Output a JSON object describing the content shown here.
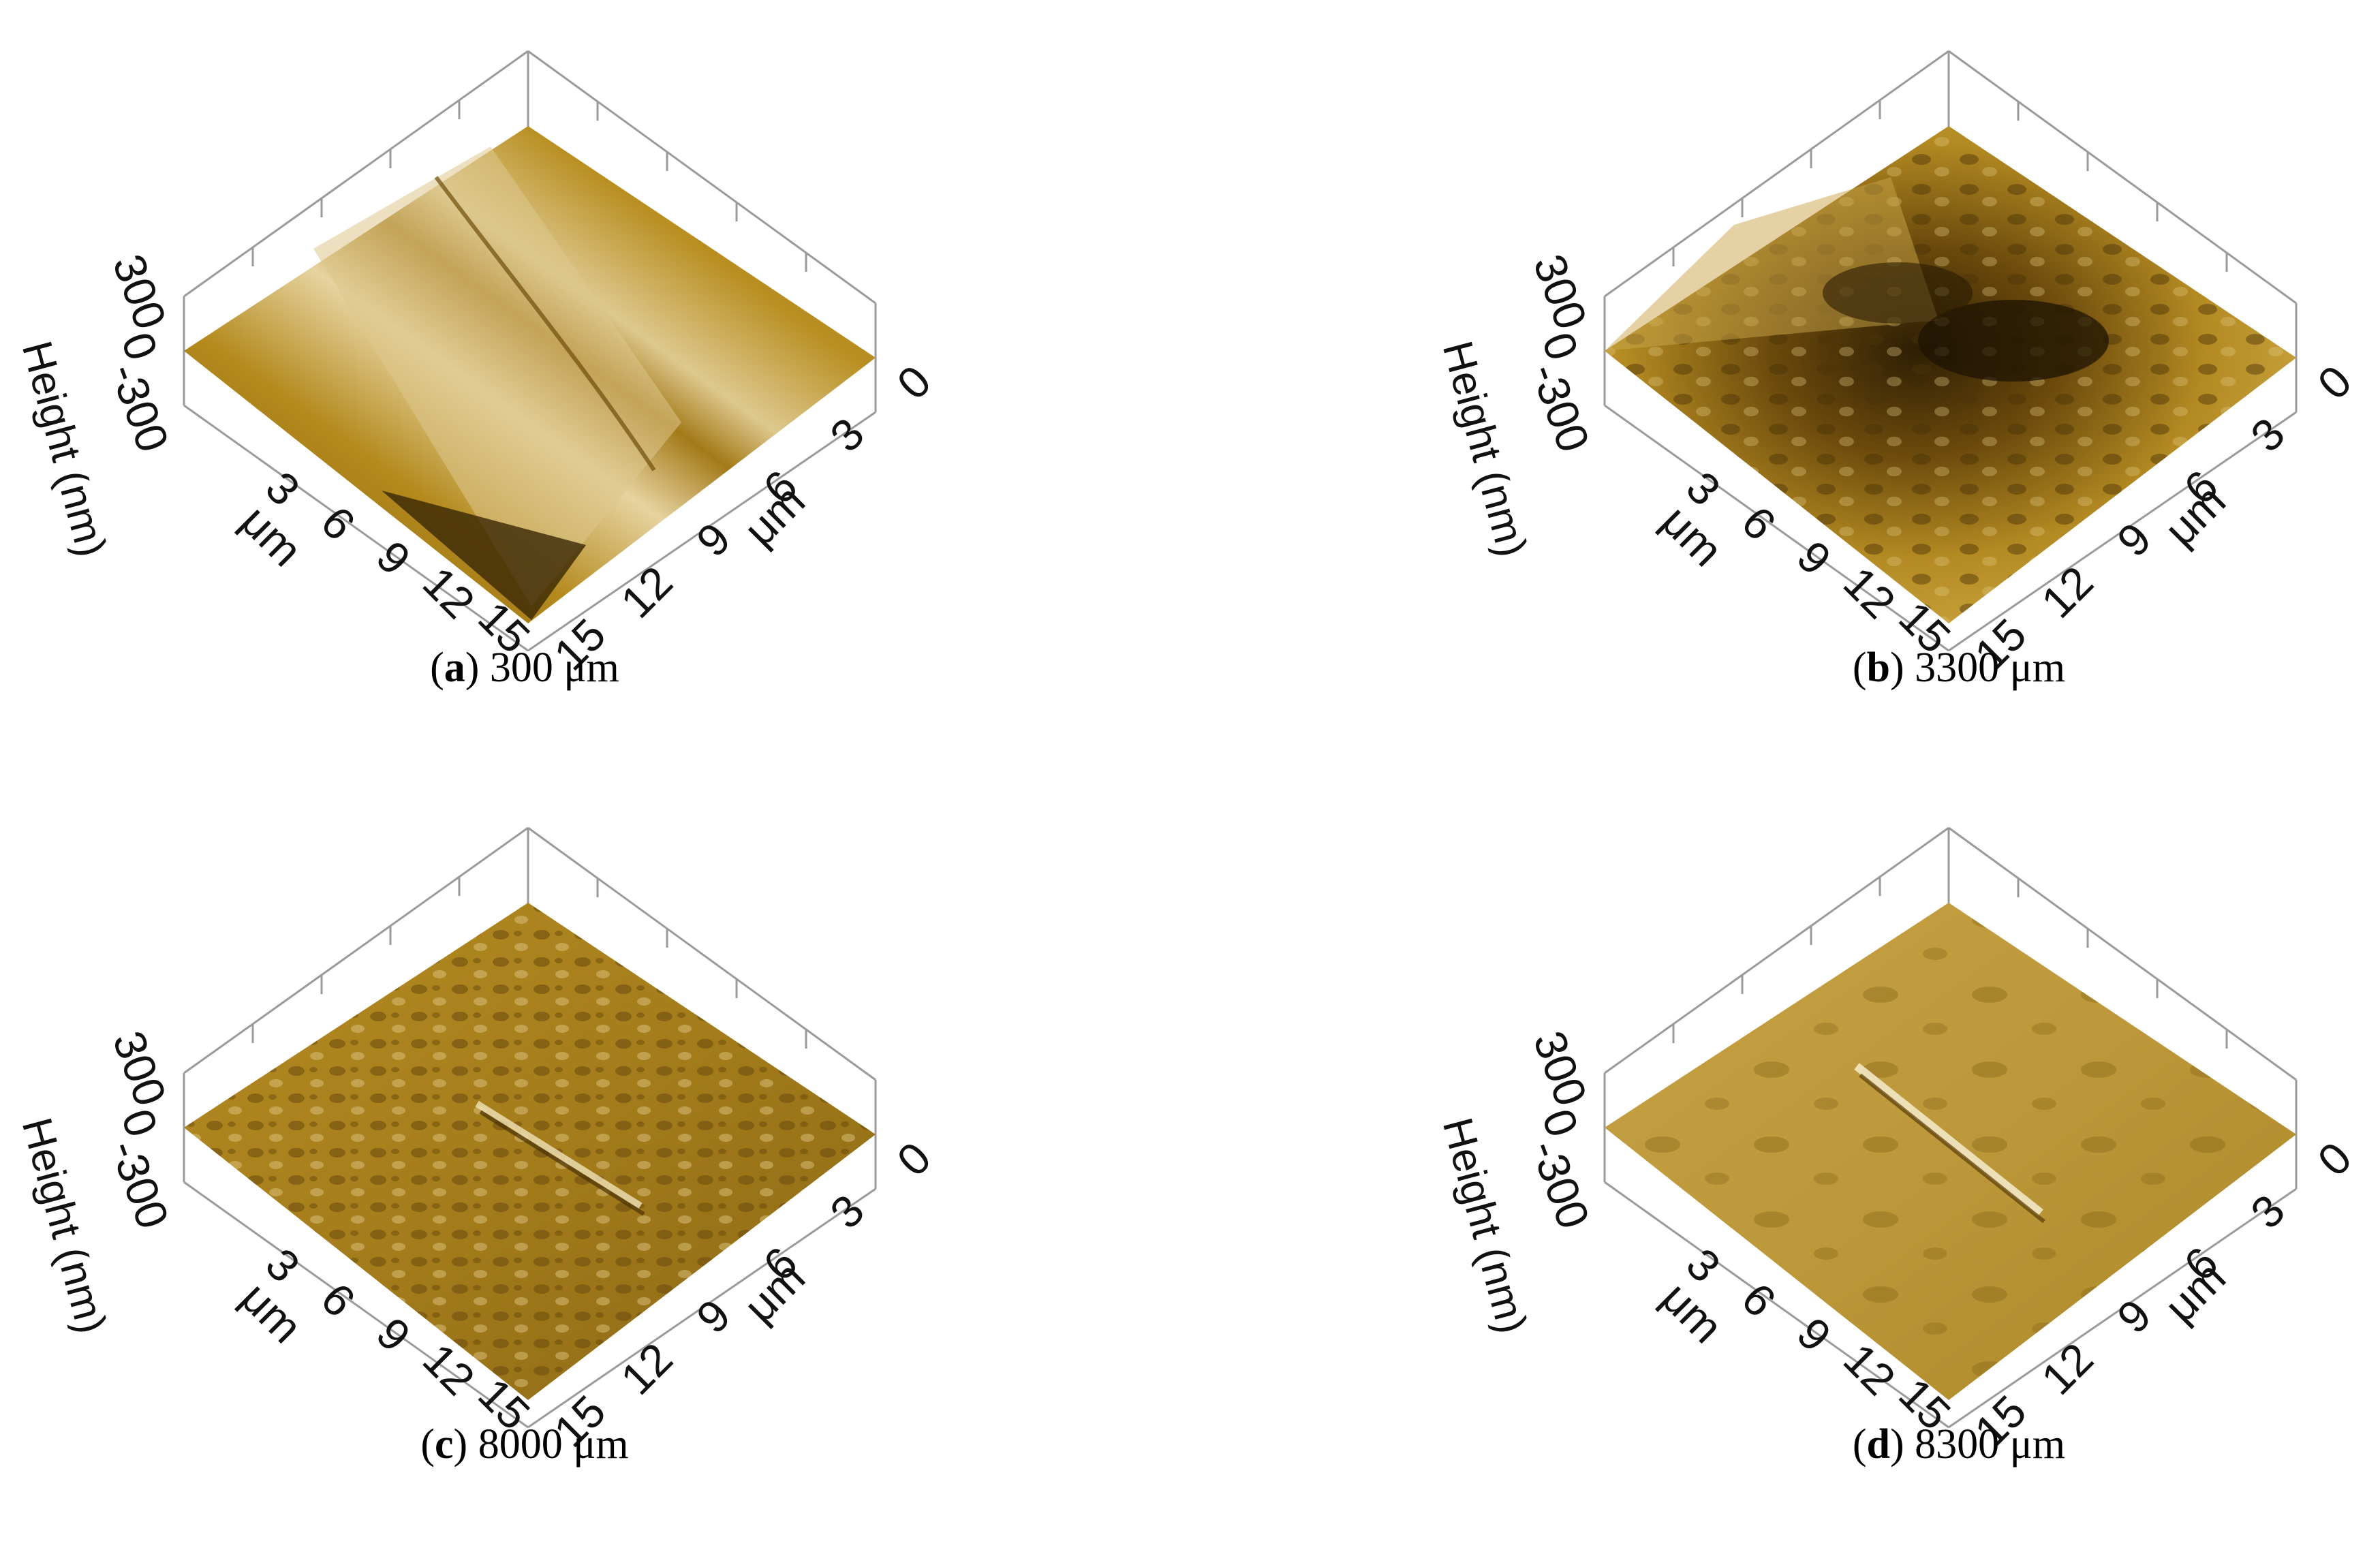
{
  "panels": [
    {
      "id": "a",
      "caption_letter": "a",
      "caption_value": "300 μm",
      "surface": "tall oblique ridge with bright sloped face; deep groove near the bottom corner",
      "axis": {
        "height_label": "Height (nm)",
        "height_ticks": [
          "300",
          "0",
          "-300"
        ],
        "left_ticks": [
          "3",
          "6",
          "9",
          "12",
          "15"
        ],
        "right_ticks": [
          "0",
          "3",
          "6",
          "9",
          "12",
          "15"
        ],
        "left_unit": "μm",
        "right_unit": "μm"
      }
    },
    {
      "id": "b",
      "caption_letter": "b",
      "caption_value": "3300 μm",
      "surface": "rough ridged surface with dark depressions and nodular texture",
      "axis": {
        "height_label": "Height (nm)",
        "height_ticks": [
          "300",
          "0",
          "-300"
        ],
        "left_ticks": [
          "3",
          "6",
          "9",
          "12",
          "15"
        ],
        "right_ticks": [
          "0",
          "3",
          "6",
          "9",
          "12",
          "15"
        ],
        "left_unit": "μm",
        "right_unit": "μm"
      }
    },
    {
      "id": "c",
      "caption_letter": "c",
      "caption_value": "8000 μm",
      "surface": "uniformly bumpy nodular surface with a short scratch",
      "axis": {
        "height_label": "Height (nm)",
        "height_ticks": [
          "300",
          "0",
          "-300"
        ],
        "left_ticks": [
          "3",
          "6",
          "9",
          "12",
          "15"
        ],
        "right_ticks": [
          "0",
          "3",
          "6",
          "9",
          "12",
          "15"
        ],
        "left_unit": "μm",
        "right_unit": "μm"
      }
    },
    {
      "id": "d",
      "caption_letter": "d",
      "caption_value": "8300 μm",
      "surface": "smooth flat surface with sparse islands and a diagonal scratch line",
      "axis": {
        "height_label": "Height (nm)",
        "height_ticks": [
          "300",
          "0",
          "-300"
        ],
        "left_ticks": [
          "3",
          "6",
          "9",
          "12",
          "15"
        ],
        "right_ticks": [
          "0",
          "3",
          "6",
          "9",
          "12",
          "15"
        ],
        "left_unit": "μm",
        "right_unit": "μm"
      }
    }
  ],
  "colors": {
    "surface_base": "#b8901e",
    "surface_light": "#e8d9a6",
    "surface_dark": "#3d2a06",
    "axis_lines": "#9a9a9a",
    "text": "#111111"
  }
}
